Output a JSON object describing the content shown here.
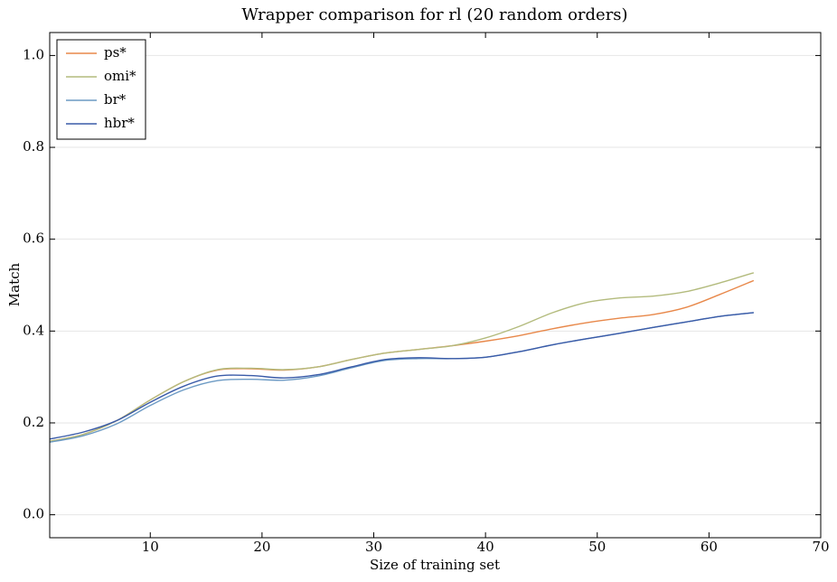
{
  "chart_data": {
    "type": "line",
    "title": "Wrapper comparison for rl (20 random orders)",
    "xlabel": "Size of training set",
    "ylabel": "Match",
    "x": [
      1,
      4,
      7,
      10,
      13,
      16,
      19,
      22,
      25,
      28,
      31,
      34,
      37,
      40,
      43,
      46,
      49,
      52,
      55,
      58,
      61,
      64
    ],
    "series": [
      {
        "name": "ps*",
        "color": "#e8884a",
        "values": [
          0.16,
          0.175,
          0.205,
          0.25,
          0.29,
          0.315,
          0.318,
          0.315,
          0.322,
          0.338,
          0.352,
          0.36,
          0.368,
          0.378,
          0.39,
          0.405,
          0.418,
          0.428,
          0.436,
          0.452,
          0.48,
          0.51
        ]
      },
      {
        "name": "omi*",
        "color": "#b3bb7d",
        "values": [
          0.16,
          0.175,
          0.205,
          0.25,
          0.29,
          0.316,
          0.319,
          0.316,
          0.322,
          0.338,
          0.352,
          0.36,
          0.368,
          0.385,
          0.41,
          0.44,
          0.462,
          0.472,
          0.476,
          0.486,
          0.505,
          0.527
        ]
      },
      {
        "name": "br*",
        "color": "#6c9ac4",
        "values": [
          0.158,
          0.172,
          0.198,
          0.238,
          0.272,
          0.292,
          0.295,
          0.293,
          0.302,
          0.32,
          0.336,
          0.34,
          0.34,
          0.343,
          0.355,
          0.37,
          0.383,
          0.395,
          0.408,
          0.42,
          0.432,
          0.44
        ]
      },
      {
        "name": "hbr*",
        "color": "#3a5ba8",
        "values": [
          0.165,
          0.18,
          0.205,
          0.245,
          0.28,
          0.302,
          0.303,
          0.298,
          0.305,
          0.322,
          0.338,
          0.342,
          0.34,
          0.343,
          0.355,
          0.37,
          0.383,
          0.395,
          0.408,
          0.42,
          0.432,
          0.44
        ]
      }
    ],
    "xlim": [
      1,
      70
    ],
    "xticks": [
      10,
      20,
      30,
      40,
      50,
      60,
      70
    ],
    "ylim": [
      -0.05,
      1.05
    ],
    "yticks": [
      {
        "value": 0,
        "label": "0.0"
      },
      {
        "value": 0.2,
        "label": "0.2"
      },
      {
        "value": 0.4,
        "label": "0.4"
      },
      {
        "value": 0.6,
        "label": "0.6"
      },
      {
        "value": 0.8,
        "label": "0.8"
      },
      {
        "value": 1,
        "label": "1.0"
      }
    ],
    "grid": true,
    "legend": "upper left"
  }
}
